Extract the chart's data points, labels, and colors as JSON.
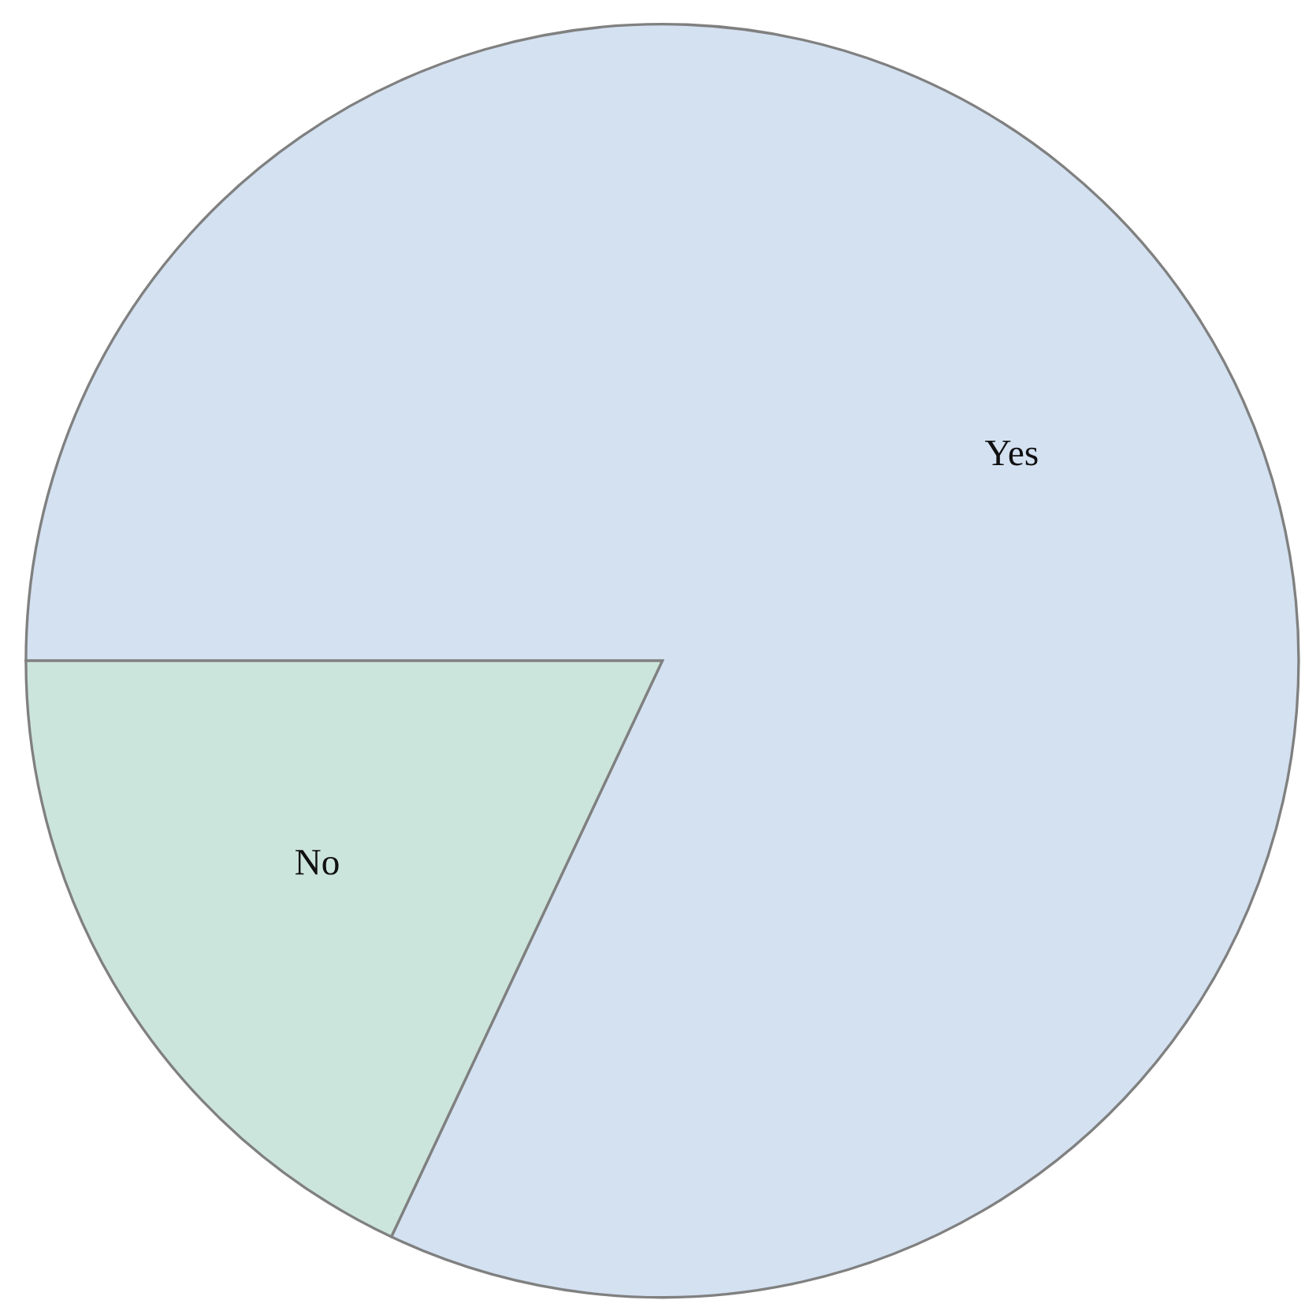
{
  "chart_data": {
    "type": "pie",
    "categories": [
      "Yes",
      "No"
    ],
    "values": [
      82,
      18
    ],
    "colors": [
      "#d3e1f1",
      "#cce5dc"
    ]
  }
}
